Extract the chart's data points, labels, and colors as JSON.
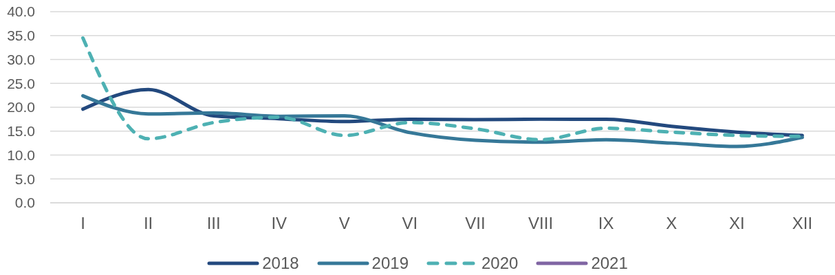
{
  "chart_data": {
    "type": "line",
    "categories": [
      "I",
      "II",
      "III",
      "IV",
      "V",
      "VI",
      "VII",
      "VIII",
      "IX",
      "X",
      "XI",
      "XII"
    ],
    "series": [
      {
        "name": "2018",
        "color": "#23497e",
        "line_style": "solid",
        "values": [
          19.6,
          23.7,
          18.2,
          17.6,
          17.0,
          17.5,
          17.4,
          17.5,
          17.5,
          16.0,
          14.8,
          14.1
        ]
      },
      {
        "name": "2019",
        "color": "#367898",
        "line_style": "solid",
        "values": [
          22.4,
          18.6,
          18.8,
          18.1,
          18.2,
          14.7,
          13.1,
          12.7,
          13.2,
          12.5,
          11.8,
          13.7
        ]
      },
      {
        "name": "2020",
        "color": "#4eb1b3",
        "line_style": "dashed",
        "values": [
          34.5,
          13.4,
          16.8,
          17.9,
          14.1,
          16.8,
          15.5,
          13.2,
          15.6,
          14.8,
          14.1,
          13.9
        ]
      },
      {
        "name": "2021",
        "color": "#8065a3",
        "line_style": "solid",
        "values": [
          null,
          null,
          null,
          null,
          null,
          null,
          null,
          null,
          null,
          null,
          null,
          null
        ]
      }
    ],
    "ylim": [
      0,
      40
    ],
    "yticks": [
      {
        "value": 0,
        "label": "0.0"
      },
      {
        "value": 5,
        "label": "5.0"
      },
      {
        "value": 10,
        "label": "10.0"
      },
      {
        "value": 15,
        "label": "15.0"
      },
      {
        "value": 20,
        "label": "20.0"
      },
      {
        "value": 25,
        "label": "25.0"
      },
      {
        "value": 30,
        "label": "30.0"
      },
      {
        "value": 35,
        "label": "35.0"
      },
      {
        "value": 40,
        "label": "40.0"
      }
    ],
    "grid": "y",
    "legend": "bottom"
  }
}
